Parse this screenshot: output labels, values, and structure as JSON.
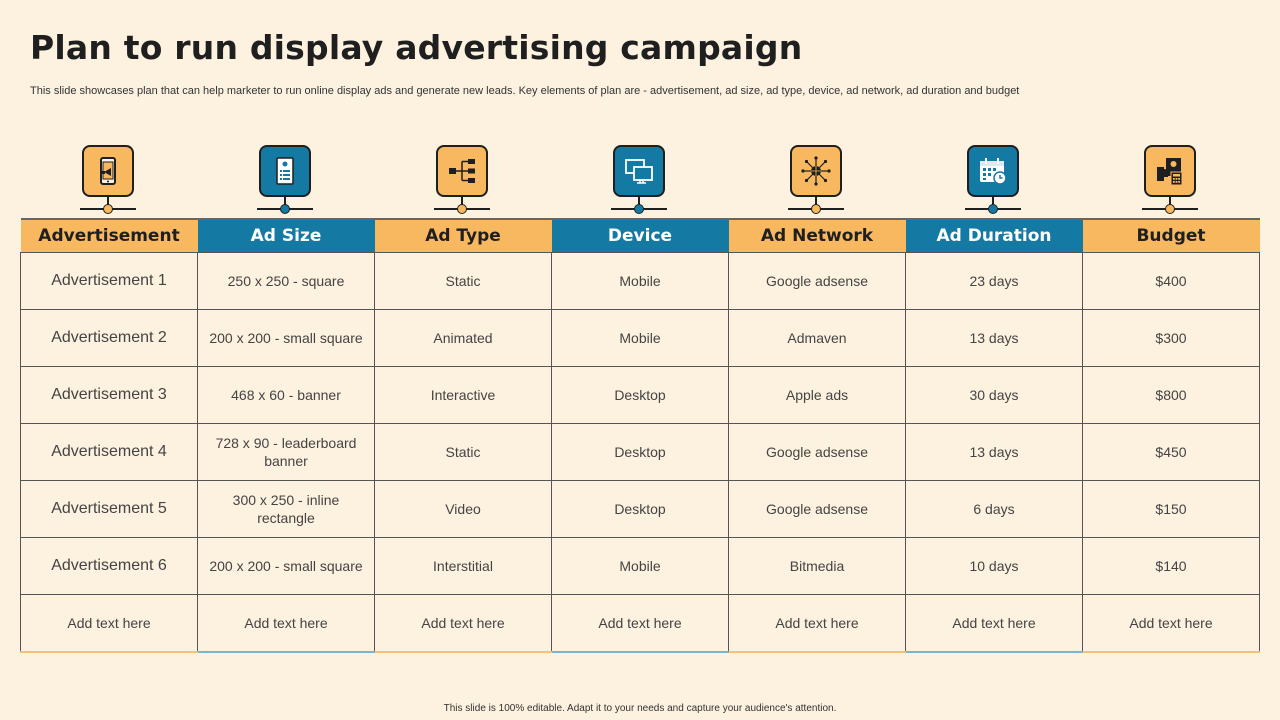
{
  "title": "Plan to run display advertising campaign",
  "subtitle": "This slide showcases plan that can help marketer to run online display ads and generate new leads. Key elements of plan are - advertisement, ad size, ad type,  device, ad network, ad duration and budget",
  "icons": [
    {
      "name": "mobile-megaphone-icon",
      "color": "#f7b860"
    },
    {
      "name": "document-list-icon",
      "color": "#157aa3"
    },
    {
      "name": "hierarchy-icon",
      "color": "#f7b860"
    },
    {
      "name": "monitors-icon",
      "color": "#157aa3"
    },
    {
      "name": "network-globe-icon",
      "color": "#f7b860"
    },
    {
      "name": "calendar-clock-icon",
      "color": "#157aa3"
    },
    {
      "name": "budget-calculator-icon",
      "color": "#f7b860"
    }
  ],
  "table": {
    "headers": [
      "Advertisement",
      "Ad Size",
      "Ad Type",
      "Device",
      "Ad Network",
      "Ad Duration",
      "Budget"
    ],
    "rows": [
      [
        "Advertisement 1",
        "250 x 250 - square",
        "Static",
        "Mobile",
        "Google adsense",
        "23 days",
        "$400"
      ],
      [
        "Advertisement 2",
        "200 x 200 - small square",
        "Animated",
        "Mobile",
        "Admaven",
        "13 days",
        "$300"
      ],
      [
        "Advertisement 3",
        "468 x 60 - banner",
        "Interactive",
        "Desktop",
        "Apple ads",
        "30 days",
        "$800"
      ],
      [
        "Advertisement 4",
        "728 x 90 - leaderboard banner",
        "Static",
        "Desktop",
        "Google adsense",
        "13 days",
        "$450"
      ],
      [
        "Advertisement 5",
        "300 x 250 - inline rectangle",
        "Video",
        "Desktop",
        "Google adsense",
        "6 days",
        "$150"
      ],
      [
        "Advertisement 6",
        "200 x 200 - small square",
        "Interstitial",
        "Mobile",
        "Bitmedia",
        "10 days",
        "$140"
      ],
      [
        "Add text here",
        "Add text here",
        "Add text here",
        "Add text here",
        "Add text here",
        "Add text here",
        "Add text here"
      ]
    ]
  },
  "footer": "This slide is 100% editable. Adapt it to your needs and capture your audience's attention.",
  "colors": {
    "orange": "#f7b860",
    "blue": "#157aa3",
    "background": "#fdf1df"
  }
}
